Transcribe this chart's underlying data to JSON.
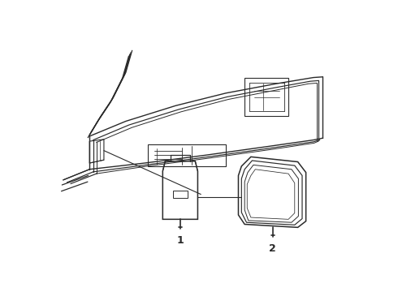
{
  "background_color": "#ffffff",
  "line_color": "#2a2a2a",
  "label_1": "1",
  "label_2": "2",
  "fig_width": 4.9,
  "fig_height": 3.6,
  "dpi": 100
}
